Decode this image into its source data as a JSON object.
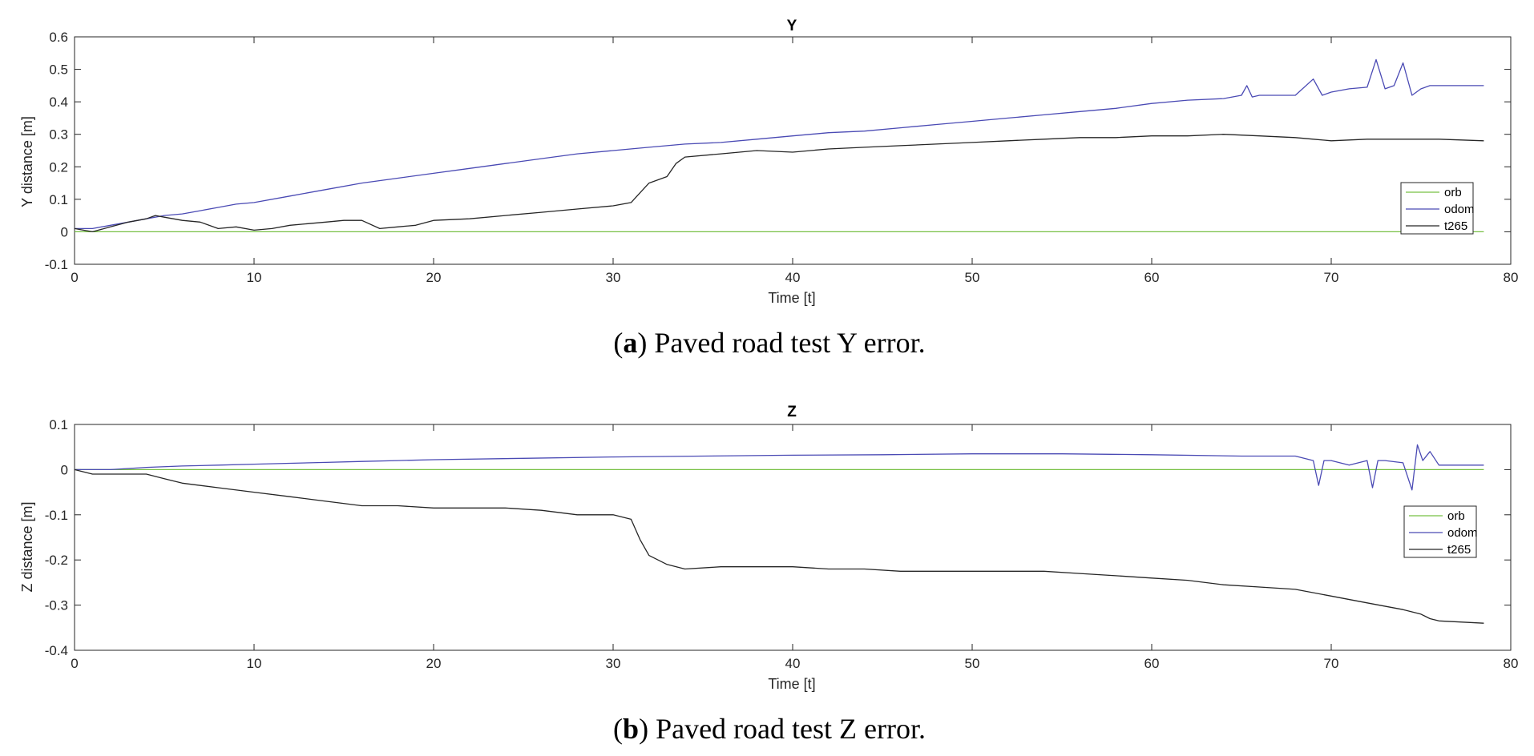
{
  "chart_data": [
    {
      "type": "line",
      "caption_letter": "a",
      "caption_text": "Paved road test Y error.",
      "title": "Y",
      "xlabel": "Time [t]",
      "ylabel": "Y distance [m]",
      "xlim": [
        0,
        80
      ],
      "ylim": [
        -0.1,
        0.6
      ],
      "xticks": [
        "0",
        "10",
        "20",
        "30",
        "40",
        "50",
        "60",
        "70",
        "80"
      ],
      "yticks": [
        "-0.1",
        "0",
        "0.1",
        "0.2",
        "0.3",
        "0.4",
        "0.5",
        "0.6"
      ],
      "grid": false,
      "legend": "right",
      "series": [
        {
          "name": "orb",
          "color": "#77c043",
          "x": [
            0,
            78.5
          ],
          "y": [
            0,
            0
          ]
        },
        {
          "name": "odom",
          "color": "#4a4ab4",
          "x": [
            0,
            1,
            2,
            3,
            4,
            5,
            6,
            7,
            8,
            9,
            10,
            12,
            14,
            16,
            18,
            20,
            22,
            24,
            26,
            28,
            30,
            32,
            34,
            36,
            38,
            40,
            42,
            44,
            46,
            48,
            50,
            52,
            54,
            56,
            58,
            60,
            62,
            64,
            65,
            65.3,
            65.6,
            66,
            68,
            69,
            69.5,
            70,
            71,
            72,
            72.5,
            73,
            73.5,
            74,
            74.5,
            75,
            75.5,
            76,
            77,
            78.5
          ],
          "y": [
            0.01,
            0.01,
            0.02,
            0.03,
            0.04,
            0.05,
            0.055,
            0.065,
            0.075,
            0.085,
            0.09,
            0.11,
            0.13,
            0.15,
            0.165,
            0.18,
            0.195,
            0.21,
            0.225,
            0.24,
            0.25,
            0.26,
            0.27,
            0.275,
            0.285,
            0.295,
            0.305,
            0.31,
            0.32,
            0.33,
            0.34,
            0.35,
            0.36,
            0.37,
            0.38,
            0.395,
            0.405,
            0.41,
            0.42,
            0.45,
            0.415,
            0.42,
            0.42,
            0.47,
            0.42,
            0.43,
            0.44,
            0.445,
            0.53,
            0.44,
            0.45,
            0.52,
            0.42,
            0.44,
            0.45,
            0.45,
            0.45,
            0.45
          ]
        },
        {
          "name": "t265",
          "color": "#262626",
          "x": [
            0,
            1,
            2,
            3,
            4,
            4.5,
            5,
            6,
            7,
            8,
            9,
            10,
            11,
            12,
            13,
            14,
            15,
            16,
            17,
            18,
            19,
            20,
            22,
            24,
            26,
            28,
            30,
            31,
            31.5,
            32,
            33,
            33.5,
            34,
            36,
            38,
            40,
            42,
            44,
            46,
            48,
            50,
            52,
            54,
            56,
            58,
            60,
            62,
            64,
            66,
            68,
            69,
            70,
            72,
            74,
            76,
            78.5
          ],
          "y": [
            0.01,
            0.0,
            0.015,
            0.03,
            0.04,
            0.05,
            0.045,
            0.035,
            0.03,
            0.01,
            0.015,
            0.005,
            0.01,
            0.02,
            0.025,
            0.03,
            0.035,
            0.035,
            0.01,
            0.015,
            0.02,
            0.035,
            0.04,
            0.05,
            0.06,
            0.07,
            0.08,
            0.09,
            0.12,
            0.15,
            0.17,
            0.21,
            0.23,
            0.24,
            0.25,
            0.245,
            0.255,
            0.26,
            0.265,
            0.27,
            0.275,
            0.28,
            0.285,
            0.29,
            0.29,
            0.295,
            0.295,
            0.3,
            0.295,
            0.29,
            0.285,
            0.28,
            0.285,
            0.285,
            0.285,
            0.28
          ]
        }
      ]
    },
    {
      "type": "line",
      "caption_letter": "b",
      "caption_text": "Paved road test Z error.",
      "title": "Z",
      "xlabel": "Time [t]",
      "ylabel": "Z distance [m]",
      "xlim": [
        0,
        80
      ],
      "ylim": [
        -0.4,
        0.1
      ],
      "xticks": [
        "0",
        "10",
        "20",
        "30",
        "40",
        "50",
        "60",
        "70",
        "80"
      ],
      "yticks": [
        "-0.4",
        "-0.3",
        "-0.2",
        "-0.1",
        "0",
        "0.1"
      ],
      "grid": false,
      "legend": "right",
      "series": [
        {
          "name": "orb",
          "color": "#77c043",
          "x": [
            0,
            78.5
          ],
          "y": [
            0,
            0
          ]
        },
        {
          "name": "odom",
          "color": "#4a4ab4",
          "x": [
            0,
            2,
            4,
            6,
            8,
            10,
            12,
            14,
            16,
            18,
            20,
            25,
            30,
            35,
            40,
            45,
            50,
            55,
            60,
            65,
            68,
            69,
            69.3,
            69.6,
            70,
            71,
            72,
            72.3,
            72.6,
            73,
            74,
            74.5,
            74.8,
            75.1,
            75.5,
            76,
            77,
            78.5
          ],
          "y": [
            0,
            0.0,
            0.005,
            0.008,
            0.01,
            0.012,
            0.014,
            0.016,
            0.018,
            0.02,
            0.022,
            0.025,
            0.028,
            0.03,
            0.032,
            0.033,
            0.035,
            0.035,
            0.033,
            0.03,
            0.03,
            0.02,
            -0.035,
            0.02,
            0.02,
            0.01,
            0.02,
            -0.04,
            0.02,
            0.02,
            0.015,
            -0.045,
            0.055,
            0.02,
            0.04,
            0.01,
            0.01,
            0.01
          ]
        },
        {
          "name": "t265",
          "color": "#262626",
          "x": [
            0,
            1,
            2,
            3,
            4,
            5,
            6,
            8,
            10,
            12,
            14,
            16,
            18,
            20,
            22,
            24,
            26,
            28,
            30,
            31,
            31.5,
            32,
            33,
            34,
            36,
            38,
            40,
            42,
            44,
            46,
            48,
            50,
            52,
            54,
            56,
            58,
            60,
            62,
            64,
            66,
            68,
            70,
            72,
            74,
            75,
            75.5,
            76,
            78.5
          ],
          "y": [
            0,
            -0.01,
            -0.01,
            -0.01,
            -0.01,
            -0.02,
            -0.03,
            -0.04,
            -0.05,
            -0.06,
            -0.07,
            -0.08,
            -0.08,
            -0.085,
            -0.085,
            -0.085,
            -0.09,
            -0.1,
            -0.1,
            -0.11,
            -0.155,
            -0.19,
            -0.21,
            -0.22,
            -0.215,
            -0.215,
            -0.215,
            -0.22,
            -0.22,
            -0.225,
            -0.225,
            -0.225,
            -0.225,
            -0.225,
            -0.23,
            -0.235,
            -0.24,
            -0.245,
            -0.255,
            -0.26,
            -0.265,
            -0.28,
            -0.295,
            -0.31,
            -0.32,
            -0.33,
            -0.335,
            -0.34
          ]
        }
      ]
    }
  ]
}
